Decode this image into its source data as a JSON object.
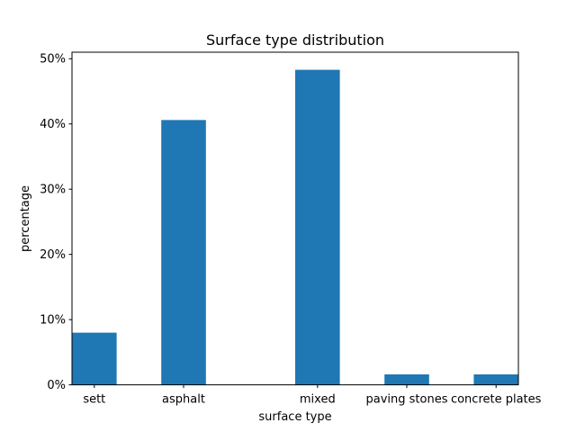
{
  "chart_data": {
    "type": "bar",
    "title": "Surface type distribution",
    "xlabel": "surface type",
    "ylabel": "percentage",
    "ylim": [
      0,
      51
    ],
    "yticks": [
      0,
      10,
      20,
      30,
      40,
      50
    ],
    "ytick_labels": [
      "0%",
      "10%",
      "20%",
      "30%",
      "40%",
      "50%"
    ],
    "x_positions": [
      0,
      1,
      2.5,
      3.5,
      4.5
    ],
    "xlim": [
      -0.25,
      4.75
    ],
    "bar_width": 0.5,
    "categories": [
      "sett",
      "asphalt",
      "mixed",
      "paving stones",
      "concrete plates"
    ],
    "values": [
      8.0,
      40.6,
      48.3,
      1.6,
      1.6
    ],
    "bar_color": "#1f77b4",
    "grid": false,
    "legend": "none"
  }
}
